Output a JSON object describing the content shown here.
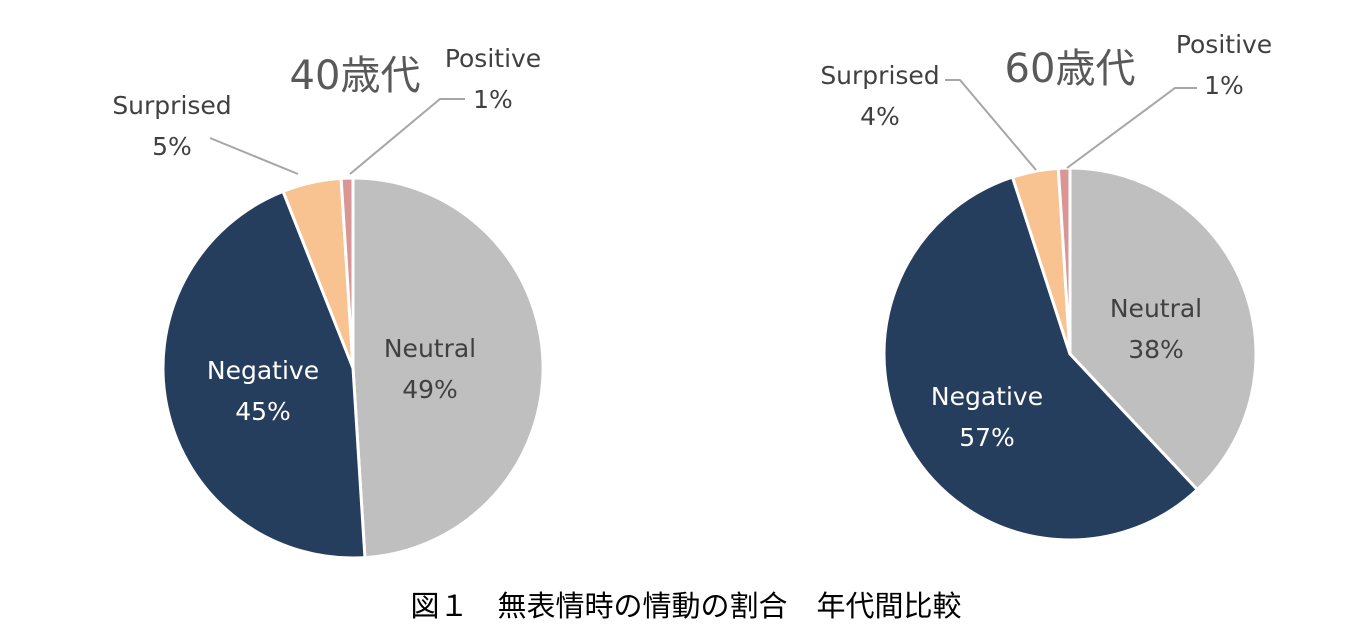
{
  "caption": "図１　無表情時の情動の割合　年代間比較",
  "chart_data": [
    {
      "type": "pie",
      "title": "40歳代",
      "slices": [
        {
          "label": "Neutral",
          "value": 49,
          "display": "49%",
          "color": "#BFBFBF"
        },
        {
          "label": "Negative",
          "value": 45,
          "display": "45%",
          "color": "#263E5E"
        },
        {
          "label": "Surprised",
          "value": 5,
          "display": "5%",
          "color": "#F8C291"
        },
        {
          "label": "Positive",
          "value": 1,
          "display": "1%",
          "color": "#D99694"
        }
      ]
    },
    {
      "type": "pie",
      "title": "60歳代",
      "slices": [
        {
          "label": "Neutral",
          "value": 38,
          "display": "38%",
          "color": "#BFBFBF"
        },
        {
          "label": "Negative",
          "value": 57,
          "display": "57%",
          "color": "#263E5E"
        },
        {
          "label": "Surprised",
          "value": 4,
          "display": "4%",
          "color": "#F8C291"
        },
        {
          "label": "Positive",
          "value": 1,
          "display": "1%",
          "color": "#D99694"
        }
      ]
    }
  ]
}
